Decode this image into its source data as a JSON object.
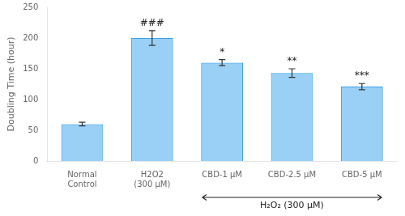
{
  "chart_data": {
    "type": "bar",
    "categories": [
      "Normal\nControl",
      "H2O2\n(300 μM)",
      "CBD-1 μM",
      "CBD-2.5 μM",
      "CBD-5 μM"
    ],
    "values": [
      60,
      200,
      160,
      143,
      121
    ],
    "errors": [
      3,
      12,
      5,
      7,
      5
    ],
    "ylabel": "Doubling Time (hour)",
    "ylim": [
      0,
      250
    ],
    "yticks": [
      0,
      50,
      100,
      150,
      200,
      250
    ],
    "grid": false,
    "significance": [
      null,
      "###",
      "*",
      "**",
      "***"
    ],
    "annotations": [
      {
        "text": "H₂O₂ (300 μM)",
        "from": "CBD-1 μM",
        "to": "CBD-5 μM"
      }
    ]
  }
}
